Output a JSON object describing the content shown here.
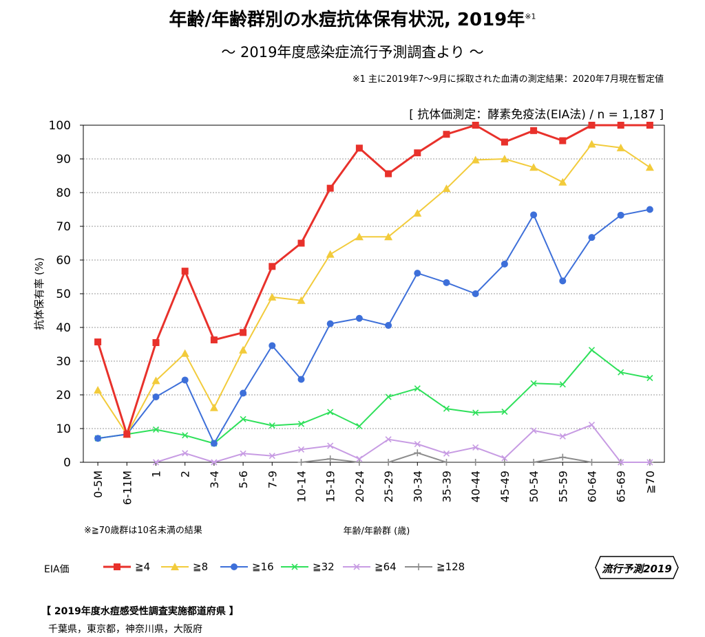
{
  "header": {
    "title": "年齢/年齢群別の水痘抗体保有状況, 2019年",
    "title_sup": "※1",
    "subtitle": "～ 2019年度感染症流行予測調査より ～",
    "footnote1": "※1 主に2019年7～9月に採取された血清の測定結果：2020年7月現在暫定値",
    "method": "[ 抗体価測定：酵素免疫法(EIA法) / n = 1,187 ]"
  },
  "note70": "※≧70歳群は10名未満の結果",
  "legend": {
    "title": "EIA価"
  },
  "badge": {
    "text": "流行予測2019"
  },
  "prefectures": {
    "title": "【 2019年度水痘感受性調査実施都道府県 】",
    "list": "千葉県，東京都，神奈川県，大阪府"
  },
  "chart_data": {
    "type": "line",
    "xlabel": "年齢/年齢群 (歳)",
    "ylabel": "抗体保有率 (%)",
    "ylim": [
      0,
      100
    ],
    "yticks": [
      0,
      10,
      20,
      30,
      40,
      50,
      60,
      70,
      80,
      90,
      100
    ],
    "grid": true,
    "categories": [
      "0-5M",
      "6-11M",
      "1",
      "2",
      "3-4",
      "5-6",
      "7-9",
      "10-14",
      "15-19",
      "20-24",
      "25-29",
      "30-34",
      "35-39",
      "40-44",
      "45-49",
      "50-54",
      "55-59",
      "60-64",
      "65-69",
      "≧70"
    ],
    "series": [
      {
        "name": "≧4",
        "color": "#e8312b",
        "marker": "square",
        "values": [
          35.7,
          8.3,
          35.5,
          56.7,
          36.3,
          38.5,
          58.1,
          65.0,
          81.3,
          93.2,
          85.6,
          91.8,
          97.3,
          100,
          95.0,
          98.4,
          95.4,
          100,
          100,
          100
        ]
      },
      {
        "name": "≧8",
        "color": "#f2cb3b",
        "marker": "triangle",
        "values": [
          21.4,
          8.3,
          24.2,
          32.3,
          16.2,
          33.3,
          49.0,
          48.0,
          61.7,
          66.9,
          66.9,
          73.9,
          81.2,
          89.7,
          90.0,
          87.5,
          83.1,
          94.4,
          93.3,
          87.5
        ]
      },
      {
        "name": "≧16",
        "color": "#3d6fd9",
        "marker": "circle",
        "values": [
          7.1,
          8.3,
          19.4,
          24.4,
          5.6,
          20.5,
          34.6,
          24.6,
          41.1,
          42.7,
          40.6,
          56.1,
          53.3,
          50.0,
          58.8,
          73.4,
          53.8,
          66.7,
          73.3,
          75.0
        ]
      },
      {
        "name": "≧32",
        "color": "#2ee05a",
        "marker": "x",
        "values": [
          7.1,
          8.3,
          9.7,
          8.0,
          5.6,
          12.8,
          10.9,
          11.4,
          14.9,
          10.7,
          19.4,
          21.9,
          15.9,
          14.7,
          15.0,
          23.4,
          23.1,
          33.3,
          26.7,
          25.0
        ]
      },
      {
        "name": "≧64",
        "color": "#c79be3",
        "marker": "x",
        "values": [
          null,
          null,
          0,
          2.7,
          0,
          2.6,
          1.9,
          3.8,
          4.9,
          1.0,
          6.8,
          5.4,
          2.6,
          4.4,
          1.2,
          9.4,
          7.7,
          11.1,
          0,
          0
        ]
      },
      {
        "name": "≧128",
        "color": "#8c8c8c",
        "marker": "plus",
        "values": [
          null,
          null,
          null,
          null,
          null,
          null,
          null,
          0,
          1.0,
          0,
          0,
          2.8,
          0,
          0,
          0,
          0,
          1.5,
          0,
          0,
          0
        ]
      }
    ]
  }
}
